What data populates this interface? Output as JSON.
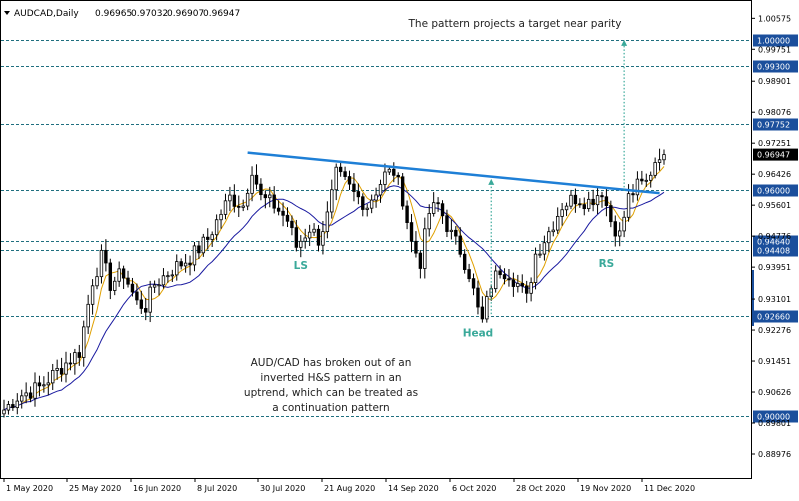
{
  "chart_data": {
    "type": "candlestick",
    "symbol": "AUDCAD,Daily",
    "ohlc": [
      "0.96965",
      "0.97032",
      "0.96907",
      "0.96947"
    ],
    "current_price": "0.96947",
    "ylim": [
      0.8855,
      1.0085
    ],
    "x_ticks": [
      "1 May 2020",
      "25 May 2020",
      "16 Jun 2020",
      "8 Jul 2020",
      "30 Jul 2020",
      "21 Aug 2020",
      "14 Sep 2020",
      "6 Oct 2020",
      "28 Oct 2020",
      "19 Nov 2020",
      "11 Dec 2020"
    ],
    "y_ticks": [
      "1.00575",
      "0.99751",
      "0.98901",
      "0.98076",
      "0.97251",
      "0.96426",
      "0.95601",
      "0.94776",
      "0.93951",
      "0.93101",
      "0.92276",
      "0.91451",
      "0.90626",
      "0.89801",
      "0.88976"
    ],
    "levels": [
      {
        "value": 1.0,
        "label": "1.00000"
      },
      {
        "value": 0.993,
        "label": "0.99300"
      },
      {
        "value": 0.97752,
        "label": "0.97752"
      },
      {
        "value": 0.96,
        "label": "0.96000"
      },
      {
        "value": 0.9464,
        "label": "0.94640"
      },
      {
        "value": 0.944,
        "label": "0.94408"
      },
      {
        "value": 0.9266,
        "label": "0.92660"
      },
      {
        "value": 0.9,
        "label": "0.90000"
      }
    ],
    "neckline": {
      "start": {
        "bar": 55,
        "price": 0.97
      },
      "end": {
        "bar": 148,
        "price": 0.9592
      }
    },
    "projection_arrows": [
      {
        "bar": 110,
        "from": 0.927,
        "to": 0.963
      },
      {
        "bar": 140,
        "from": 0.9598,
        "to": 1.0
      }
    ],
    "pattern_labels": [
      {
        "text": "LS",
        "bar": 67,
        "price": 0.939
      },
      {
        "text": "Head",
        "bar": 107,
        "price": 0.921
      },
      {
        "text": "RS",
        "bar": 136,
        "price": 0.9395
      }
    ],
    "top_annotation": "The pattern projects a target near parity",
    "annotation_lines": [
      "AUD/CAD has broken out of an",
      "inverted H&S pattern in an",
      "uptrend, which can be treated as",
      "a continuation pattern"
    ],
    "colors": {
      "neckline": "#1e7fd6",
      "arrows": "#3aa99a",
      "ma_fast": "#e0a000",
      "ma_slow": "#1a1aa0",
      "level_lines": "#1f6f7f",
      "price_label_bg": "#1b4f9c"
    },
    "waypoints": [
      [
        0,
        0.9015
      ],
      [
        3,
        0.905
      ],
      [
        8,
        0.9075
      ],
      [
        14,
        0.914
      ],
      [
        17,
        0.917
      ],
      [
        20,
        0.936
      ],
      [
        22,
        0.942
      ],
      [
        24,
        0.935
      ],
      [
        27,
        0.938
      ],
      [
        30,
        0.93
      ],
      [
        32,
        0.929
      ],
      [
        34,
        0.935
      ],
      [
        38,
        0.939
      ],
      [
        42,
        0.942
      ],
      [
        46,
        0.947
      ],
      [
        49,
        0.954
      ],
      [
        51,
        0.958
      ],
      [
        54,
        0.956
      ],
      [
        56,
        0.966
      ],
      [
        58,
        0.958
      ],
      [
        61,
        0.956
      ],
      [
        64,
        0.952
      ],
      [
        66,
        0.945
      ],
      [
        69,
        0.95
      ],
      [
        71,
        0.947
      ],
      [
        73,
        0.953
      ],
      [
        75,
        0.964
      ],
      [
        77,
        0.962
      ],
      [
        79,
        0.959
      ],
      [
        82,
        0.956
      ],
      [
        84,
        0.96
      ],
      [
        86,
        0.964
      ],
      [
        88,
        0.965
      ],
      [
        90,
        0.958
      ],
      [
        92,
        0.946
      ],
      [
        94,
        0.941
      ],
      [
        96,
        0.954
      ],
      [
        98,
        0.956
      ],
      [
        101,
        0.948
      ],
      [
        103,
        0.944
      ],
      [
        105,
        0.938
      ],
      [
        107,
        0.928
      ],
      [
        108,
        0.925
      ],
      [
        110,
        0.935
      ],
      [
        112,
        0.939
      ],
      [
        114,
        0.938
      ],
      [
        116,
        0.935
      ],
      [
        118,
        0.931
      ],
      [
        120,
        0.943
      ],
      [
        123,
        0.949
      ],
      [
        126,
        0.956
      ],
      [
        129,
        0.958
      ],
      [
        132,
        0.957
      ],
      [
        135,
        0.96
      ],
      [
        137,
        0.952
      ],
      [
        139,
        0.948
      ],
      [
        141,
        0.958
      ],
      [
        143,
        0.961
      ],
      [
        145,
        0.962
      ],
      [
        147,
        0.968
      ],
      [
        148,
        0.97
      ],
      [
        149,
        0.96947
      ]
    ]
  }
}
